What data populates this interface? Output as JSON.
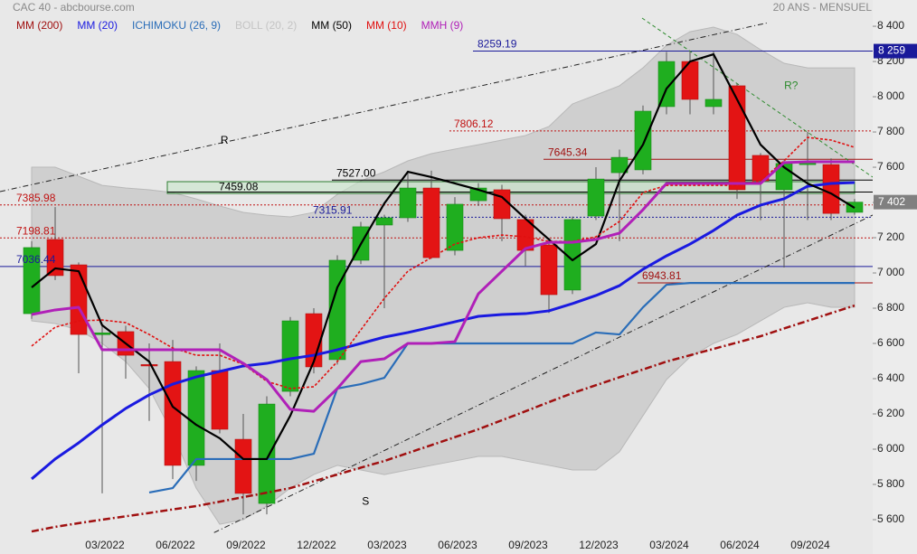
{
  "chart_data": {
    "type": "candlestick",
    "title": "CAC 40 - abcbourse.com",
    "subtitle": "20 ANS - MENSUEL",
    "categories": [
      null,
      null,
      null,
      "03/2022",
      null,
      null,
      "06/2022",
      null,
      null,
      "09/2022",
      null,
      null,
      "12/2022",
      null,
      null,
      "03/2023",
      null,
      null,
      "06/2023",
      null,
      null,
      "09/2023",
      null,
      null,
      "12/2023",
      null,
      null,
      "03/2024",
      null,
      null,
      "06/2024",
      null,
      null,
      "09/2024",
      null,
      null
    ],
    "open": [
      6769,
      7190,
      7046,
      6650,
      6667,
      6480,
      6497,
      5908,
      6446,
      6056,
      5692,
      6328,
      6769,
      6508,
      7072,
      7272,
      7313,
      7482,
      7128,
      7410,
      7472,
      7303,
      7159,
      6903,
      7323,
      7569,
      7585,
      7944,
      8200,
      7944,
      8062,
      7667,
      7472,
      7615,
      7615,
      7344
    ],
    "high": [
      7180,
      7374,
      7060,
      6700,
      6700,
      6600,
      6620,
      6470,
      6600,
      6200,
      6300,
      6750,
      6800,
      7100,
      7290,
      7330,
      7580,
      7580,
      7430,
      7510,
      7500,
      7330,
      7200,
      7320,
      7600,
      7700,
      7950,
      8254,
      8259,
      8259,
      8075,
      7680,
      7640,
      7800,
      7650,
      7420
    ],
    "low": [
      6740,
      6960,
      6431,
      5749,
      6400,
      6160,
      5830,
      5820,
      6090,
      5630,
      5630,
      6300,
      6430,
      6480,
      7050,
      6800,
      7290,
      7080,
      7100,
      7380,
      7180,
      7040,
      6773,
      6880,
      7300,
      7180,
      7560,
      7900,
      7900,
      7900,
      7420,
      7300,
      7031,
      7300,
      7300,
      7330
    ],
    "close": [
      7144,
      6985,
      6651,
      6660,
      6533,
      6475,
      5908,
      6446,
      6113,
      5749,
      6256,
      6728,
      6467,
      7072,
      7262,
      7313,
      7482,
      7087,
      7390,
      7482,
      7308,
      7128,
      6877,
      7303,
      7533,
      7656,
      7918,
      8200,
      7985,
      7985,
      7472,
      7523,
      7621,
      7631,
      7338,
      7402
    ],
    "up_color": "#1fae1f",
    "down_color": "#e31414",
    "series": [
      {
        "name": "MM (200)",
        "color": "#a01010",
        "style": "dashdot",
        "values": [
          5533,
          5559,
          5580,
          5600,
          5619,
          5638,
          5658,
          5677,
          5702,
          5728,
          5753,
          5779,
          5818,
          5856,
          5895,
          5933,
          5978,
          6023,
          6068,
          6113,
          6164,
          6215,
          6267,
          6318,
          6363,
          6408,
          6452,
          6497,
          6533,
          6569,
          6605,
          6641,
          6685,
          6728,
          6772,
          6815
        ]
      },
      {
        "name": "MM (20)",
        "color": "#1a1ae0",
        "style": "thick",
        "values": [
          5831,
          5944,
          6036,
          6138,
          6231,
          6308,
          6369,
          6410,
          6441,
          6472,
          6487,
          6513,
          6533,
          6564,
          6600,
          6636,
          6662,
          6692,
          6723,
          6754,
          6764,
          6769,
          6785,
          6826,
          6872,
          6928,
          7021,
          7097,
          7164,
          7241,
          7328,
          7385,
          7421,
          7492,
          7508,
          7513
        ]
      },
      {
        "name": "ICHIMOKU (26, 9)",
        "color": "#2a6db8",
        "style": "solid",
        "values": [
          null,
          null,
          null,
          null,
          null,
          5754,
          5779,
          5944,
          5944,
          5944,
          5944,
          5944,
          5974,
          6344,
          6369,
          6405,
          6600,
          6600,
          6600,
          6600,
          6600,
          6600,
          6600,
          6600,
          6662,
          6651,
          6805,
          6933,
          6943,
          6943,
          6943,
          6943,
          6943,
          6943,
          6943,
          6943
        ]
      },
      {
        "name": "BOLL (20, 2)",
        "color": "#c4c4c4",
        "style": "band",
        "upper": [
          7600,
          7600,
          7549,
          7497,
          7482,
          7472,
          7456,
          7420,
          7380,
          7344,
          7328,
          7318,
          7344,
          7446,
          7523,
          7574,
          7636,
          7677,
          7703,
          7728,
          7754,
          7780,
          7831,
          7959,
          8010,
          8062,
          8164,
          8292,
          8369,
          8395,
          8354,
          8267,
          8190,
          8164,
          8164,
          8164
        ],
        "lower": [
          6728,
          6713,
          6677,
          6600,
          6497,
          6344,
          6087,
          5779,
          5574,
          5600,
          5677,
          5779,
          5856,
          5908,
          5882,
          5856,
          5882,
          5908,
          5933,
          5959,
          5959,
          5933,
          5908,
          5882,
          5882,
          5985,
          6190,
          6395,
          6523,
          6600,
          6651,
          6728,
          6805,
          6831,
          6805,
          6805
        ]
      },
      {
        "name": "MM (50)",
        "color": "#000000",
        "style": "solid",
        "values": [
          6918,
          7026,
          7010,
          6703,
          6600,
          6497,
          6241,
          6138,
          6062,
          5944,
          5944,
          6190,
          6497,
          6918,
          7164,
          7395,
          7574,
          7544,
          7508,
          7472,
          7431,
          7308,
          7190,
          7072,
          7164,
          7523,
          7728,
          8046,
          8200,
          8241,
          7985,
          7728,
          7600,
          7508,
          7451,
          7369
        ]
      },
      {
        "name": "MM (10)",
        "color": "#e01010",
        "style": "dotted",
        "values": [
          6585,
          6692,
          6728,
          6733,
          6718,
          6651,
          6574,
          6533,
          6533,
          6482,
          6385,
          6344,
          6354,
          6497,
          6677,
          6856,
          7010,
          7087,
          7164,
          7200,
          7215,
          7205,
          7179,
          7179,
          7205,
          7292,
          7456,
          7497,
          7497,
          7497,
          7497,
          7523,
          7636,
          7769,
          7754,
          7713
        ]
      },
      {
        "name": "MMH (9)",
        "color": "#b020b8",
        "style": "thick",
        "values": [
          6764,
          6790,
          6805,
          6564,
          6564,
          6564,
          6564,
          6564,
          6564,
          6487,
          6395,
          6226,
          6215,
          6344,
          6497,
          6513,
          6600,
          6600,
          6610,
          6882,
          7010,
          7138,
          7174,
          7174,
          7190,
          7226,
          7359,
          7508,
          7508,
          7508,
          7508,
          7508,
          7626,
          7631,
          7631,
          7631
        ]
      }
    ],
    "levels": [
      {
        "value": 8259.19,
        "label": "8259.19",
        "color": "#1a1a9a",
        "style": "solid",
        "start": 19
      },
      {
        "value": 7806.12,
        "label": "7806.12",
        "color": "#c01010",
        "style": "dotted",
        "start": 18
      },
      {
        "value": 7645.34,
        "label": "7645.34",
        "color": "#a01010",
        "style": "solid",
        "start": 22
      },
      {
        "value": 7527.0,
        "label": "7527.00",
        "color": "#000000",
        "style": "solid",
        "start": 13
      },
      {
        "value": 7459.08,
        "label": "7459.08",
        "color": "#2e7d32",
        "style": "zone",
        "start": 6,
        "zone": [
          7451,
          7518
        ]
      },
      {
        "value": 7385.98,
        "label": "7385.98",
        "color": "#c01010",
        "style": "dotted"
      },
      {
        "value": 7315.91,
        "label": "7315.91",
        "color": "#1a1a9a",
        "style": "dotted",
        "start": 12
      },
      {
        "value": 7198.81,
        "label": "7198.81",
        "color": "#c01010",
        "style": "dotted"
      },
      {
        "value": 7036.44,
        "label": "7036.44",
        "color": "#1a1a9a",
        "style": "solid"
      },
      {
        "value": 6943.81,
        "label": "6943.81",
        "color": "#a01010",
        "style": "solid",
        "start": 26
      }
    ],
    "annotations": [
      {
        "text": "R",
        "x": 8.2,
        "y": 7750,
        "color": "#000000"
      },
      {
        "text": "S",
        "x": 14.2,
        "y": 5700,
        "color": "#000000"
      },
      {
        "text": "R?",
        "x": 32.3,
        "y": 8060,
        "color": "#2e8b2e"
      }
    ],
    "price_tags": [
      {
        "value": 8259,
        "label": "8 259",
        "color": "#1a1a9a"
      },
      {
        "value": 7402,
        "label": "7 402",
        "color": "#808080"
      }
    ],
    "ylim": [
      5523,
      8549
    ],
    "yticks": [
      {
        "value": 5600,
        "label": "5 600"
      },
      {
        "value": 5800,
        "label": "5 800"
      },
      {
        "value": 6000,
        "label": "6 000"
      },
      {
        "value": 6200,
        "label": "6 200"
      },
      {
        "value": 6400,
        "label": "6 400"
      },
      {
        "value": 6600,
        "label": "6 600"
      },
      {
        "value": 6800,
        "label": "6 800"
      },
      {
        "value": 7000,
        "label": "7 000"
      },
      {
        "value": 7200,
        "label": "7 200"
      },
      {
        "value": 7400,
        "label": "7 400"
      },
      {
        "value": 7600,
        "label": "7 600"
      },
      {
        "value": 7800,
        "label": "7 800"
      },
      {
        "value": 8000,
        "label": "8 000"
      },
      {
        "value": 8200,
        "label": "8 200"
      },
      {
        "value": 8400,
        "label": "8 400"
      }
    ]
  }
}
